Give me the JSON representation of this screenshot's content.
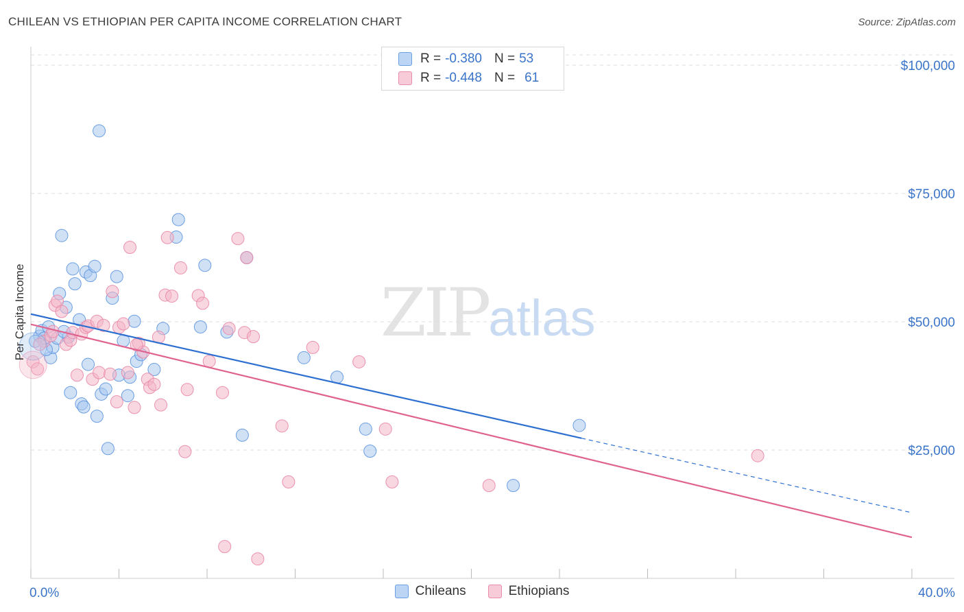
{
  "header": {
    "title": "CHILEAN VS ETHIOPIAN PER CAPITA INCOME CORRELATION CHART",
    "source": "Source: ZipAtlas.com"
  },
  "watermark": {
    "zip": "ZIP",
    "atlas": "atlas"
  },
  "legend": {
    "rows": [
      {
        "r_label": "R =",
        "r_value": "-0.380",
        "n_label": "N =",
        "n_value": "53",
        "color": "#a9c8ef"
      },
      {
        "r_label": "R =",
        "r_value": "-0.448",
        "n_label": "N =",
        "n_value": "61",
        "color": "#f4b6c8"
      }
    ]
  },
  "bottom_legend": {
    "series1": "Chileans",
    "series2": "Ethiopians"
  },
  "chart_data": {
    "type": "scatter",
    "title": "CHILEAN VS ETHIOPIAN PER CAPITA INCOME CORRELATION CHART",
    "xlabel": "",
    "ylabel": "Per Capita Income",
    "xlim": [
      0,
      40
    ],
    "ylim": [
      0,
      102000
    ],
    "x_tick_labels": [
      "0.0%",
      "40.0%"
    ],
    "y_ticks": [
      25000,
      50000,
      75000,
      100000
    ],
    "y_tick_labels": [
      "$25,000",
      "$50,000",
      "$75,000",
      "$100,000"
    ],
    "grid": true,
    "legend_position": "top-center",
    "series": [
      {
        "name": "Chileans",
        "color": "#5b95e0",
        "fill": "#a9c8ef",
        "line_color": "#2d6fd0",
        "trend": {
          "x_start": 0,
          "y_start": 51500,
          "x_solid_end": 25,
          "x_end": 40,
          "y_end": 12800
        },
        "points": [
          [
            3.1,
            87200
          ],
          [
            0.4,
            47200
          ],
          [
            0.5,
            48300
          ],
          [
            0.6,
            46800
          ],
          [
            0.8,
            49000
          ],
          [
            0.9,
            43000
          ],
          [
            1.0,
            45000
          ],
          [
            1.2,
            46800
          ],
          [
            1.3,
            55500
          ],
          [
            1.4,
            66800
          ],
          [
            1.6,
            52800
          ],
          [
            1.7,
            47000
          ],
          [
            1.8,
            36200
          ],
          [
            1.9,
            60300
          ],
          [
            2.0,
            57400
          ],
          [
            2.2,
            50400
          ],
          [
            2.3,
            34000
          ],
          [
            2.4,
            33400
          ],
          [
            2.5,
            59700
          ],
          [
            2.6,
            41700
          ],
          [
            2.7,
            59000
          ],
          [
            2.9,
            60800
          ],
          [
            3.0,
            31600
          ],
          [
            3.2,
            35900
          ],
          [
            3.4,
            36900
          ],
          [
            3.5,
            25300
          ],
          [
            3.7,
            54600
          ],
          [
            3.9,
            58800
          ],
          [
            4.0,
            39600
          ],
          [
            4.2,
            46300
          ],
          [
            4.4,
            35600
          ],
          [
            4.5,
            39200
          ],
          [
            4.7,
            50100
          ],
          [
            4.8,
            42300
          ],
          [
            5.0,
            43600
          ],
          [
            5.6,
            40700
          ],
          [
            6.0,
            48700
          ],
          [
            6.6,
            66500
          ],
          [
            6.7,
            69900
          ],
          [
            7.7,
            49000
          ],
          [
            7.9,
            61000
          ],
          [
            8.9,
            48000
          ],
          [
            9.6,
            27900
          ],
          [
            9.8,
            62500
          ],
          [
            12.4,
            43000
          ],
          [
            13.9,
            39200
          ],
          [
            15.2,
            29100
          ],
          [
            15.4,
            24800
          ],
          [
            21.9,
            18100
          ],
          [
            24.9,
            29800
          ],
          [
            0.2,
            46200
          ],
          [
            1.5,
            48100
          ],
          [
            0.7,
            44600
          ]
        ]
      },
      {
        "name": "Ethiopians",
        "color": "#e986a6",
        "fill": "#f4b6c8",
        "line_color": "#e0628f",
        "trend": {
          "x_start": 0,
          "y_start": 49500,
          "x_end": 40,
          "y_end": 8000
        },
        "points": [
          [
            0.1,
            42200
          ],
          [
            0.6,
            46200
          ],
          [
            0.9,
            47300
          ],
          [
            1.1,
            53200
          ],
          [
            1.2,
            54000
          ],
          [
            1.4,
            52000
          ],
          [
            1.6,
            45600
          ],
          [
            1.8,
            46400
          ],
          [
            1.9,
            47900
          ],
          [
            2.1,
            39600
          ],
          [
            2.3,
            47600
          ],
          [
            2.5,
            48900
          ],
          [
            2.6,
            49200
          ],
          [
            2.8,
            38800
          ],
          [
            3.0,
            50100
          ],
          [
            3.1,
            40100
          ],
          [
            3.3,
            49300
          ],
          [
            3.6,
            39800
          ],
          [
            3.7,
            55900
          ],
          [
            3.9,
            34400
          ],
          [
            4.0,
            48900
          ],
          [
            4.2,
            49600
          ],
          [
            4.4,
            40100
          ],
          [
            4.5,
            64500
          ],
          [
            4.7,
            33300
          ],
          [
            4.9,
            45800
          ],
          [
            5.1,
            44100
          ],
          [
            5.3,
            38800
          ],
          [
            5.4,
            37200
          ],
          [
            5.6,
            37800
          ],
          [
            5.8,
            47000
          ],
          [
            5.9,
            33800
          ],
          [
            6.1,
            55200
          ],
          [
            6.2,
            66400
          ],
          [
            6.4,
            55000
          ],
          [
            6.8,
            60500
          ],
          [
            7.0,
            24700
          ],
          [
            7.1,
            36800
          ],
          [
            7.6,
            55100
          ],
          [
            7.8,
            53600
          ],
          [
            8.1,
            42300
          ],
          [
            8.7,
            36200
          ],
          [
            8.8,
            6200
          ],
          [
            9.0,
            48700
          ],
          [
            9.4,
            66200
          ],
          [
            9.7,
            47900
          ],
          [
            9.8,
            62500
          ],
          [
            10.1,
            47100
          ],
          [
            10.3,
            3800
          ],
          [
            11.4,
            29700
          ],
          [
            11.7,
            18800
          ],
          [
            12.8,
            45000
          ],
          [
            14.9,
            42200
          ],
          [
            16.1,
            29100
          ],
          [
            16.4,
            18800
          ],
          [
            20.8,
            18100
          ],
          [
            33.0,
            23900
          ],
          [
            0.4,
            45600
          ],
          [
            0.3,
            40800
          ],
          [
            1.0,
            48100
          ],
          [
            4.8,
            45500
          ]
        ]
      }
    ]
  }
}
